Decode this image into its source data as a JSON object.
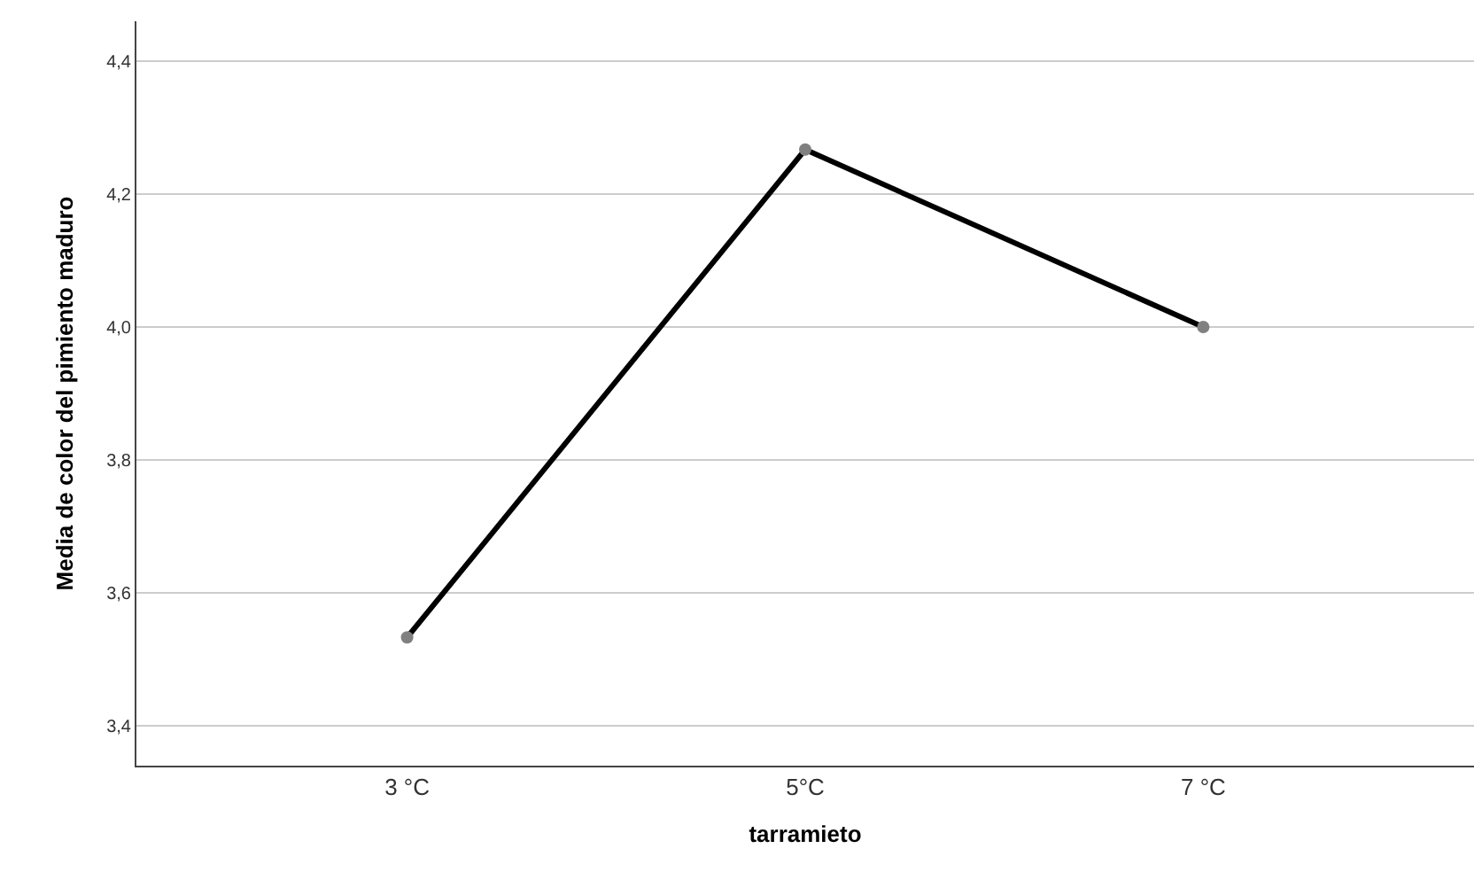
{
  "chart_data": {
    "type": "line",
    "xlabel": "tarramieto",
    "ylabel": "Media de color del pimiento maduro",
    "categories": [
      "3 °C",
      "5°C",
      "7 °C"
    ],
    "series": [
      {
        "color": "#000000",
        "values": [
          3.533,
          4.267,
          4.0
        ]
      }
    ],
    "marker": "circle",
    "line_style": "solid",
    "grid": "y",
    "ylim": [
      3.34,
      4.46
    ],
    "yticks": [
      {
        "value": 3.4,
        "label": "3,4"
      },
      {
        "value": 3.6,
        "label": "3,6"
      },
      {
        "value": 3.8,
        "label": "3,8"
      },
      {
        "value": 4.0,
        "label": "4,0"
      },
      {
        "value": 4.2,
        "label": "4,2"
      },
      {
        "value": 4.4,
        "label": "4,4"
      }
    ]
  }
}
